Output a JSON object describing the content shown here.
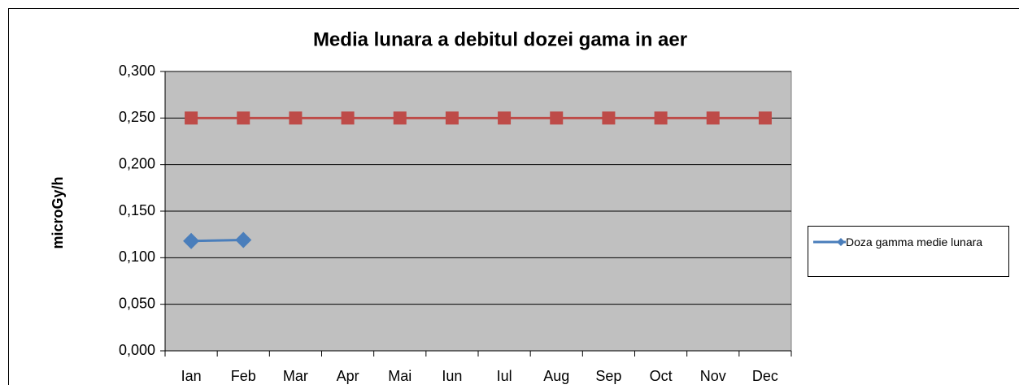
{
  "chart_data": {
    "type": "line",
    "title": "Media lunara a debitul dozei gama in aer",
    "y_label": "microGy/h",
    "categories": [
      "Ian",
      "Feb",
      "Mar",
      "Apr",
      "Mai",
      "Iun",
      "Iul",
      "Aug",
      "Sep",
      "Oct",
      "Nov",
      "Dec"
    ],
    "series": [
      {
        "name": "Doza gamma medie lunara",
        "color": "#4a7ebb",
        "marker": "diamond",
        "values": [
          0.118,
          0.119,
          null,
          null,
          null,
          null,
          null,
          null,
          null,
          null,
          null,
          null
        ]
      },
      {
        "color": "#be4b48",
        "marker": "square",
        "values": [
          0.25,
          0.25,
          0.25,
          0.25,
          0.25,
          0.25,
          0.25,
          0.25,
          0.25,
          0.25,
          0.25,
          0.25
        ]
      }
    ],
    "ylim": [
      0,
      0.3
    ],
    "yticks": [
      {
        "value": 0,
        "label": "0,000"
      },
      {
        "value": 0.05,
        "label": "0,050"
      },
      {
        "value": 0.1,
        "label": "0,100"
      },
      {
        "value": 0.15,
        "label": "0,150"
      },
      {
        "value": 0.2,
        "label": "0,200"
      },
      {
        "value": 0.25,
        "label": "0,250"
      },
      {
        "value": 0.3,
        "label": "0,300"
      }
    ],
    "grid": true,
    "legend": "right"
  }
}
